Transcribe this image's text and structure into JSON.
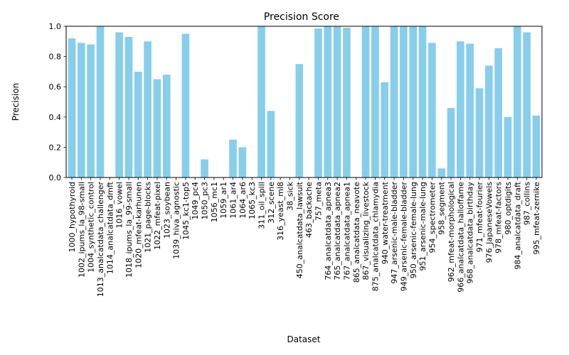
{
  "chart_data": {
    "type": "bar",
    "title": "Precision Score",
    "xlabel": "Dataset",
    "ylabel": "Precision",
    "ylim": [
      0,
      1
    ],
    "yticks": [
      "0.0",
      "0.2",
      "0.4",
      "0.6",
      "0.8",
      "1.0"
    ],
    "grid": false,
    "bar_color": "#87ceeb",
    "categories": [
      "1000_hypothyroid",
      "1002_ipums_la_98-small",
      "1004_synthetic_control",
      "1013_analcatdata_challenger",
      "1014_analcatdata_dmft",
      "1016_vowel",
      "1018_ipums_la_99-small",
      "1020_mfeat-karhunen",
      "1021_page-blocks",
      "1022_mfeat-pixel",
      "1023_soybean",
      "1039_hiva_agnostic",
      "1045_kc1-top5",
      "1049_pc4",
      "1050_pc3",
      "1056_mc1",
      "1059_ar1",
      "1061_ar4",
      "1064_ar6",
      "1065_kc3",
      "311_oil_spill",
      "312_scene",
      "316_yeast_ml8",
      "38_sick",
      "450_analcatdata_lawsuit",
      "463_backache",
      "757_meta",
      "764_analcatdata_apnea3",
      "765_analcatdata_apnea2",
      "767_analcatdata_apnea1",
      "865_analcatdata_neavote",
      "867_visualizing_livestock",
      "875_analcatdata_chlamydia",
      "940_water-treatment",
      "947_arsenic-male-bladder",
      "949_arsenic-female-bladder",
      "950_arsenic-female-lung",
      "951_arsenic-male-lung",
      "954_spectrometer",
      "958_segment",
      "962_mfeat-morphological",
      "966_analcatdata_halloffame",
      "968_analcatdata_birthday",
      "971_mfeat-fourier",
      "976_JapaneseVowels",
      "978_mfeat-factors",
      "980_optdigits",
      "984_analcatdata_draft",
      "987_collins",
      "995_mfeat-zernike"
    ],
    "values": [
      0.92,
      0.89,
      0.88,
      1.0,
      0.0,
      0.96,
      0.93,
      0.7,
      0.9,
      0.65,
      0.68,
      0.0,
      0.95,
      0.0,
      0.12,
      0.0,
      0.0,
      0.25,
      0.2,
      0.0,
      1.0,
      0.44,
      0.0,
      0.0,
      0.75,
      0.0,
      0.985,
      1.0,
      1.0,
      0.99,
      0.0,
      1.0,
      1.0,
      0.63,
      1.0,
      1.0,
      1.0,
      1.0,
      0.89,
      0.06,
      0.46,
      0.9,
      0.885,
      0.59,
      0.74,
      0.855,
      0.4,
      1.0,
      0.96,
      0.41
    ]
  }
}
